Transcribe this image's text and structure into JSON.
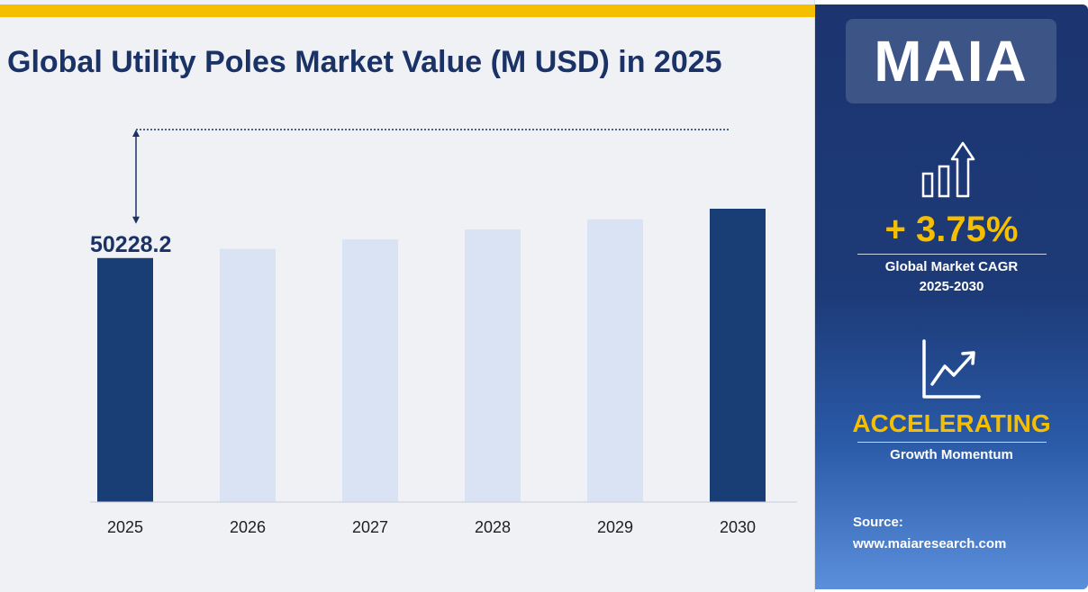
{
  "title": "Global Utility Poles Market Value (M USD) in 2025",
  "chart_data": {
    "type": "bar",
    "categories": [
      "2025",
      "2026",
      "2027",
      "2028",
      "2029",
      "2030"
    ],
    "values": [
      50228.2,
      52112,
      54066,
      56093,
      58196,
      60378
    ],
    "highlighted": [
      "2025",
      "2030"
    ],
    "data_labels": [
      {
        "category": "2025",
        "text": "50228.2"
      }
    ],
    "title": "Global Utility Poles Market Value (M USD) in 2025",
    "xlabel": "",
    "ylabel": "",
    "ylim": [
      0,
      60378
    ],
    "grid": false,
    "colors": {
      "highlight": "#183e75",
      "muted": "#dae3f3",
      "axis": "#c9ced8",
      "arrow": "#1a3266"
    }
  },
  "brand": {
    "logo": "MAIA"
  },
  "stats": {
    "cagr_value": "+ 3.75%",
    "cagr_label_line1": "Global Market CAGR",
    "cagr_label_line2": "2025-2030",
    "momentum_value": "ACCELERATING",
    "momentum_label": "Growth Momentum"
  },
  "source": {
    "label": "Source:",
    "url": "www.maiaresearch.com"
  },
  "icons": [
    "bar-growth-arrow-icon",
    "line-growth-icon"
  ]
}
